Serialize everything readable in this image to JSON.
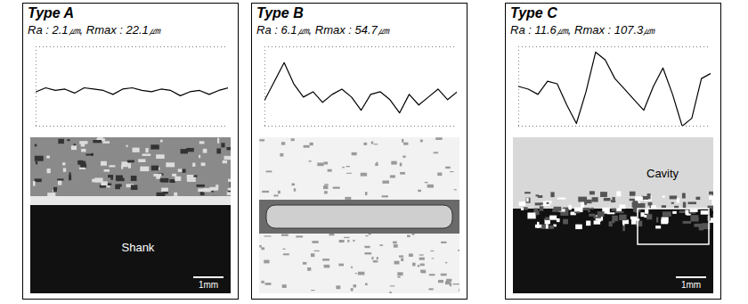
{
  "chart_data": [
    {
      "type": "line",
      "title": "Type A",
      "subtitle": "Ra : 2.1㎛, Rmax : 22.1㎛",
      "x": [
        0,
        5,
        10,
        15,
        20,
        25,
        30,
        35,
        40,
        45,
        50,
        55,
        60,
        65,
        70,
        75,
        80,
        85,
        90,
        95,
        100
      ],
      "values": [
        -4,
        -1,
        -3,
        -2,
        -5,
        -1,
        -2,
        -3,
        -6,
        -2,
        -1,
        -3,
        -4,
        -2,
        -3,
        -7,
        -4,
        -3,
        -6,
        -3,
        -1
      ],
      "xlim": [
        0,
        100
      ],
      "ylim": [
        -30,
        30
      ],
      "yticks": [
        -30,
        30
      ],
      "grid": true,
      "tick_labels": false,
      "color": "#000000",
      "micrograph": {
        "labels": [
          "Shank"
        ],
        "scale_bar": "1mm"
      }
    },
    {
      "type": "line",
      "title": "Type B",
      "subtitle": "Ra : 6.1㎛, Rmax : 54.7㎛",
      "x": [
        0,
        5,
        10,
        15,
        20,
        25,
        30,
        35,
        40,
        45,
        50,
        55,
        60,
        65,
        70,
        75,
        80,
        85,
        90,
        95,
        100
      ],
      "values": [
        -10,
        4,
        18,
        2,
        -8,
        -4,
        -12,
        -6,
        -2,
        -8,
        -18,
        -6,
        -4,
        -10,
        -20,
        -6,
        -14,
        -8,
        -2,
        -10,
        -4
      ],
      "xlim": [
        0,
        100
      ],
      "ylim": [
        -30,
        30
      ],
      "yticks": [
        -30,
        30
      ],
      "grid": true,
      "tick_labels": false,
      "color": "#000000",
      "micrograph": {
        "labels": [],
        "scale_bar": null
      }
    },
    {
      "type": "line",
      "title": "Type C",
      "subtitle": "Ra : 11.6㎛, Rmax : 107.3㎛",
      "x": [
        0,
        5,
        10,
        15,
        20,
        25,
        30,
        35,
        40,
        45,
        50,
        55,
        60,
        65,
        70,
        75,
        80,
        85,
        90,
        95,
        100
      ],
      "values": [
        0,
        -2,
        -6,
        4,
        2,
        -14,
        -28,
        -4,
        26,
        20,
        6,
        -2,
        -10,
        -18,
        0,
        14,
        -6,
        -30,
        -24,
        6,
        10
      ],
      "xlim": [
        0,
        100
      ],
      "ylim": [
        -30,
        30
      ],
      "yticks": [
        -30,
        30
      ],
      "grid": true,
      "tick_labels": false,
      "color": "#000000",
      "micrograph": {
        "labels": [
          "Cavity"
        ],
        "scale_bar": "1mm"
      }
    }
  ]
}
